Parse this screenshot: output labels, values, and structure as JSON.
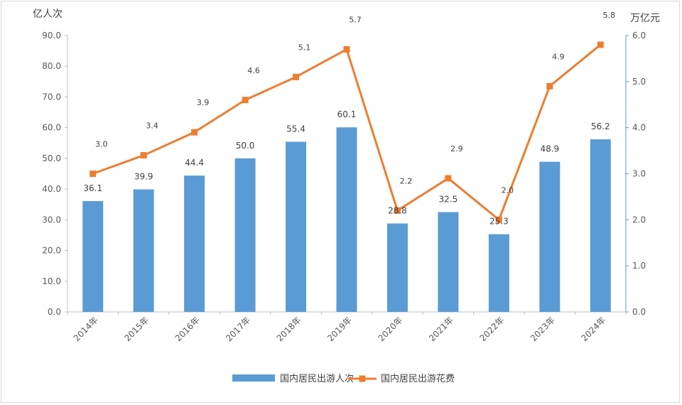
{
  "chart_data": {
    "type": "bar+line",
    "categories": [
      "2014年",
      "2015年",
      "2016年",
      "2017年",
      "2018年",
      "2019年",
      "2020年",
      "2021年",
      "2022年",
      "2023年",
      "2024年"
    ],
    "series": [
      {
        "name": "国内居民出游人次",
        "type": "bar",
        "axis": "left",
        "color": "#5b9bd5",
        "values": [
          36.1,
          39.9,
          44.4,
          50.0,
          55.4,
          60.1,
          28.8,
          32.5,
          25.3,
          48.9,
          56.2
        ],
        "labels": [
          "36.1",
          "39.9",
          "44.4",
          "50.0",
          "55.4",
          "60.1",
          "28.8",
          "32.5",
          "25.3",
          "48.9",
          "56.2"
        ]
      },
      {
        "name": "国内居民出游花费",
        "type": "line",
        "axis": "right",
        "color": "#ed7d31",
        "values": [
          3.0,
          3.4,
          3.9,
          4.6,
          5.1,
          5.7,
          2.2,
          2.9,
          2.0,
          4.9,
          5.8
        ],
        "labels": [
          "3.0",
          "3.4",
          "3.9",
          "4.6",
          "5.1",
          "5.7",
          "2.2",
          "2.9",
          "2.0",
          "4.9",
          "5.8"
        ]
      }
    ],
    "y_left": {
      "unit": "亿人次",
      "range": [
        0,
        90
      ],
      "ticks": [
        "0.0",
        "10.0",
        "20.0",
        "30.0",
        "40.0",
        "50.0",
        "60.0",
        "70.0",
        "80.0",
        "90.0"
      ]
    },
    "y_right": {
      "unit": "万亿元",
      "range": [
        0,
        6
      ],
      "ticks": [
        "0.0",
        "1.0",
        "2.0",
        "3.0",
        "4.0",
        "5.0",
        "6.0"
      ]
    },
    "grid": false,
    "legend_position": "bottom"
  }
}
